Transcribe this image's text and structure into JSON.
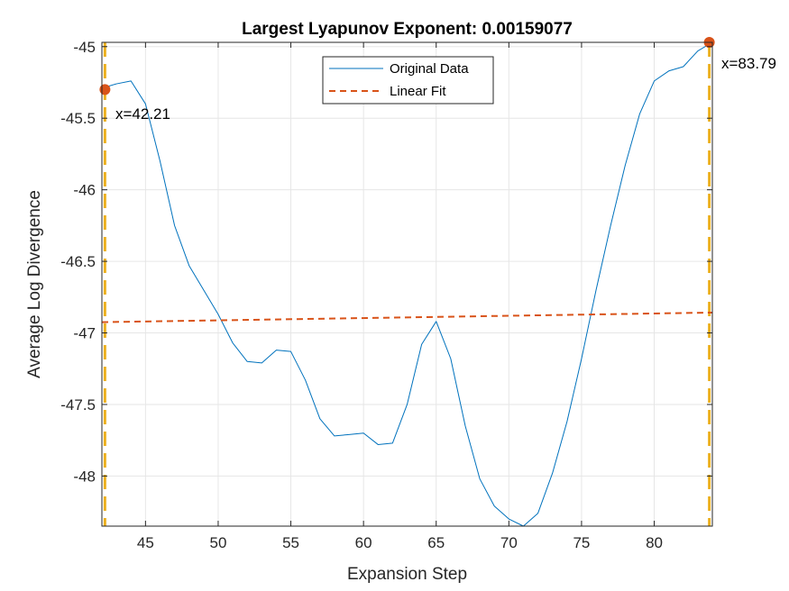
{
  "chart_data": {
    "type": "line",
    "title": "Largest Lyapunov Exponent: 0.00159077",
    "xlabel": "Expansion Step",
    "ylabel": "Average Log Divergence",
    "xlim": [
      42,
      84
    ],
    "ylim": [
      -48.35,
      -44.97
    ],
    "xticks": [
      45,
      50,
      55,
      60,
      65,
      70,
      75,
      80
    ],
    "yticks": [
      -45,
      -45.5,
      -46,
      -46.5,
      -47,
      -47.5,
      -48
    ],
    "xtick_labels": [
      "45",
      "50",
      "55",
      "60",
      "65",
      "70",
      "75",
      "80"
    ],
    "ytick_labels": [
      "-45",
      "-45.5",
      "-46",
      "-46.5",
      "-47",
      "-47.5",
      "-48"
    ],
    "grid": true,
    "legend_position": "top-center",
    "series": [
      {
        "name": "Original Data",
        "style": "solid",
        "color": "#0072BD",
        "x": [
          42,
          43,
          44,
          45,
          46,
          47,
          48,
          49,
          50,
          51,
          52,
          53,
          54,
          55,
          56,
          57,
          58,
          59,
          60,
          61,
          62,
          63,
          64,
          65,
          66,
          67,
          68,
          69,
          70,
          71,
          72,
          73,
          74,
          75,
          76,
          77,
          78,
          79,
          80,
          81,
          82,
          83,
          84
        ],
        "y": [
          -45.29,
          -45.26,
          -45.24,
          -45.4,
          -45.8,
          -46.25,
          -46.53,
          -46.7,
          -46.87,
          -47.07,
          -47.2,
          -47.21,
          -47.12,
          -47.13,
          -47.33,
          -47.6,
          -47.72,
          -47.71,
          -47.7,
          -47.78,
          -47.77,
          -47.5,
          -47.08,
          -46.92,
          -47.18,
          -47.65,
          -48.02,
          -48.21,
          -48.3,
          -48.35,
          -48.26,
          -47.98,
          -47.62,
          -47.18,
          -46.7,
          -46.25,
          -45.83,
          -45.47,
          -45.24,
          -45.17,
          -45.14,
          -45.03,
          -44.97
        ]
      },
      {
        "name": "Linear Fit",
        "style": "dashed",
        "color": "#D95319",
        "x": [
          42,
          84
        ],
        "y": [
          -46.925,
          -46.858
        ]
      }
    ],
    "markers": [
      {
        "x": 42.21,
        "y": -45.3,
        "label": "x=42.21",
        "color": "#D95319"
      },
      {
        "x": 83.79,
        "y": -44.97,
        "label": "x=83.79",
        "color": "#D95319"
      }
    ],
    "vlines": [
      {
        "x": 42.21,
        "color": "#EDB120"
      },
      {
        "x": 83.79,
        "color": "#EDB120"
      }
    ]
  }
}
